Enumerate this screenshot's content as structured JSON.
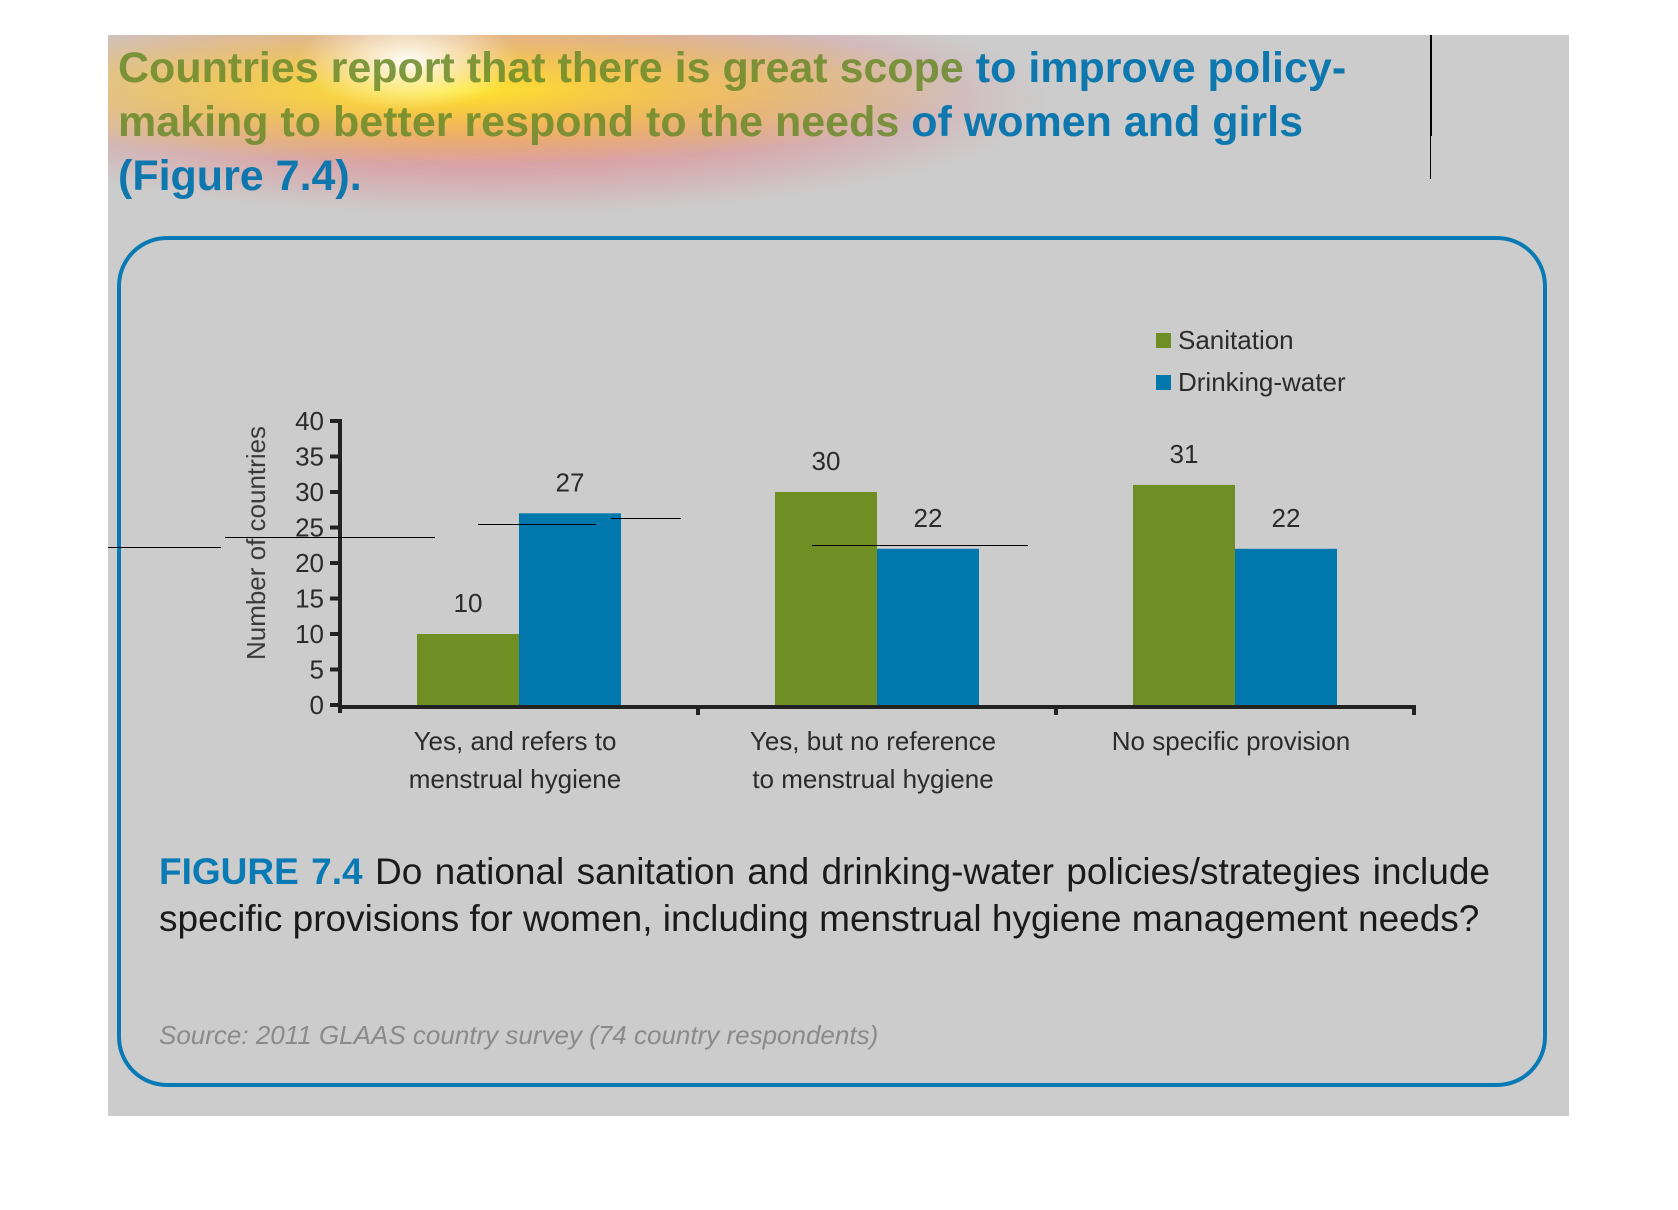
{
  "headline": {
    "highlighted": "Countries report that there is great scope",
    "rest_line1": " to improve policy-",
    "line2_highlighted": "making to better respond to the needs",
    "line2_rest": " of women and girls",
    "line3": "(Figure 7.4)."
  },
  "figure": {
    "label": "FIGURE 7.4",
    "caption": " Do national sanitation and drinking-water policies/strategies include specific provisions for women, including menstrual hygiene management needs?",
    "source": "Source: 2011 GLAAS country survey (74 country respondents)"
  },
  "colors": {
    "sanitation": "#6f8f25",
    "drinking_water": "#0077ad",
    "frame": "#0a7ab4",
    "panel": "#cccccc"
  },
  "chart_data": {
    "type": "bar",
    "title": "",
    "xlabel": "",
    "ylabel": "Number of countries",
    "ylim": [
      0,
      40
    ],
    "yticks": [
      0,
      5,
      10,
      15,
      20,
      25,
      30,
      35,
      40
    ],
    "grid": false,
    "legend_position": "top-right",
    "categories": [
      [
        "Yes, and refers to",
        "menstrual hygiene"
      ],
      [
        "Yes, but no reference",
        "to menstrual hygiene"
      ],
      [
        "No specific provision"
      ]
    ],
    "series": [
      {
        "name": "Sanitation",
        "values": [
          10,
          30,
          31
        ]
      },
      {
        "name": "Drinking-water",
        "values": [
          27,
          22,
          22
        ]
      }
    ]
  }
}
